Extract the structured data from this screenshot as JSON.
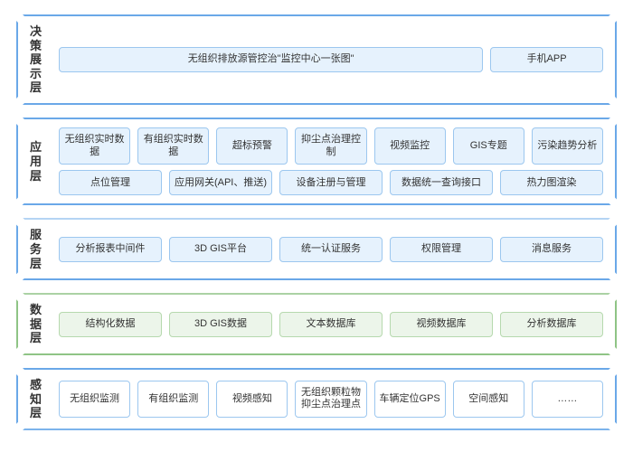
{
  "diagram": {
    "type": "layered-architecture",
    "layers": [
      {
        "id": "decision",
        "label": "决策展示层",
        "border_color": "#6aa8e8",
        "rows": [
          [
            {
              "text": "无组织排放源管控治\"监控中心一张图\"",
              "flex": 4,
              "bg": "#e6f2fd",
              "border": "#9cc7ef"
            },
            {
              "text": "手机APP",
              "flex": 1,
              "bg": "#e6f2fd",
              "border": "#9cc7ef"
            }
          ]
        ]
      },
      {
        "id": "application",
        "label": "应用层",
        "border_color": "#6aa8e8",
        "rows": [
          [
            {
              "text": "无组织实时数据",
              "flex": 1,
              "bg": "#e6f2fd",
              "border": "#9cc7ef"
            },
            {
              "text": "有组织实时数据",
              "flex": 1,
              "bg": "#e6f2fd",
              "border": "#9cc7ef"
            },
            {
              "text": "超标预警",
              "flex": 1,
              "bg": "#e6f2fd",
              "border": "#9cc7ef"
            },
            {
              "text": "抑尘点治理控制",
              "flex": 1,
              "bg": "#e6f2fd",
              "border": "#9cc7ef"
            },
            {
              "text": "视频监控",
              "flex": 1,
              "bg": "#e6f2fd",
              "border": "#9cc7ef"
            },
            {
              "text": "GIS专题",
              "flex": 1,
              "bg": "#e6f2fd",
              "border": "#9cc7ef"
            },
            {
              "text": "污染趋势分析",
              "flex": 1,
              "bg": "#e6f2fd",
              "border": "#9cc7ef"
            }
          ],
          [
            {
              "text": "点位管理",
              "flex": 1,
              "bg": "#e6f2fd",
              "border": "#9cc7ef"
            },
            {
              "text": "应用网关(API、推送)",
              "flex": 1,
              "bg": "#e6f2fd",
              "border": "#9cc7ef"
            },
            {
              "text": "设备注册与管理",
              "flex": 1,
              "bg": "#e6f2fd",
              "border": "#9cc7ef"
            },
            {
              "text": "数据统一查询接口",
              "flex": 1,
              "bg": "#e6f2fd",
              "border": "#9cc7ef"
            },
            {
              "text": "热力图渲染",
              "flex": 1,
              "bg": "#e6f2fd",
              "border": "#9cc7ef"
            }
          ]
        ]
      },
      {
        "id": "service",
        "label": "服务层",
        "border_color": "#6aa8e8",
        "rows": [
          [
            {
              "text": "分析报表中间件",
              "flex": 1,
              "bg": "#e6f2fd",
              "border": "#9cc7ef"
            },
            {
              "text": "3D GIS平台",
              "flex": 1,
              "bg": "#e6f2fd",
              "border": "#9cc7ef"
            },
            {
              "text": "统一认证服务",
              "flex": 1,
              "bg": "#e6f2fd",
              "border": "#9cc7ef"
            },
            {
              "text": "权限管理",
              "flex": 1,
              "bg": "#e6f2fd",
              "border": "#9cc7ef"
            },
            {
              "text": "消息服务",
              "flex": 1,
              "bg": "#e6f2fd",
              "border": "#9cc7ef"
            }
          ]
        ]
      },
      {
        "id": "data",
        "label": "数据层",
        "border_color": "#8fc485",
        "rows": [
          [
            {
              "text": "结构化数据",
              "flex": 1,
              "bg": "#ecf5ea",
              "border": "#b6d9ae"
            },
            {
              "text": "3D GIS数据",
              "flex": 1,
              "bg": "#ecf5ea",
              "border": "#b6d9ae"
            },
            {
              "text": "文本数据库",
              "flex": 1,
              "bg": "#ecf5ea",
              "border": "#b6d9ae"
            },
            {
              "text": "视频数据库",
              "flex": 1,
              "bg": "#ecf5ea",
              "border": "#b6d9ae"
            },
            {
              "text": "分析数据库",
              "flex": 1,
              "bg": "#ecf5ea",
              "border": "#b6d9ae"
            }
          ]
        ]
      },
      {
        "id": "perception",
        "label": "感知层",
        "border_color": "#6aa8e8",
        "rows": [
          [
            {
              "text": "无组织监测",
              "flex": 1,
              "bg": "#ffffff",
              "border": "#9cc7ef"
            },
            {
              "text": "有组织监测",
              "flex": 1,
              "bg": "#ffffff",
              "border": "#9cc7ef"
            },
            {
              "text": "视频感知",
              "flex": 1,
              "bg": "#ffffff",
              "border": "#9cc7ef"
            },
            {
              "text": "无组织颗粒物抑尘点治理点",
              "flex": 1,
              "bg": "#ffffff",
              "border": "#9cc7ef"
            },
            {
              "text": "车辆定位GPS",
              "flex": 1,
              "bg": "#ffffff",
              "border": "#9cc7ef"
            },
            {
              "text": "空间感知",
              "flex": 1,
              "bg": "#ffffff",
              "border": "#9cc7ef"
            },
            {
              "text": "……",
              "flex": 1,
              "bg": "#ffffff",
              "border": "#9cc7ef"
            }
          ]
        ]
      }
    ]
  }
}
